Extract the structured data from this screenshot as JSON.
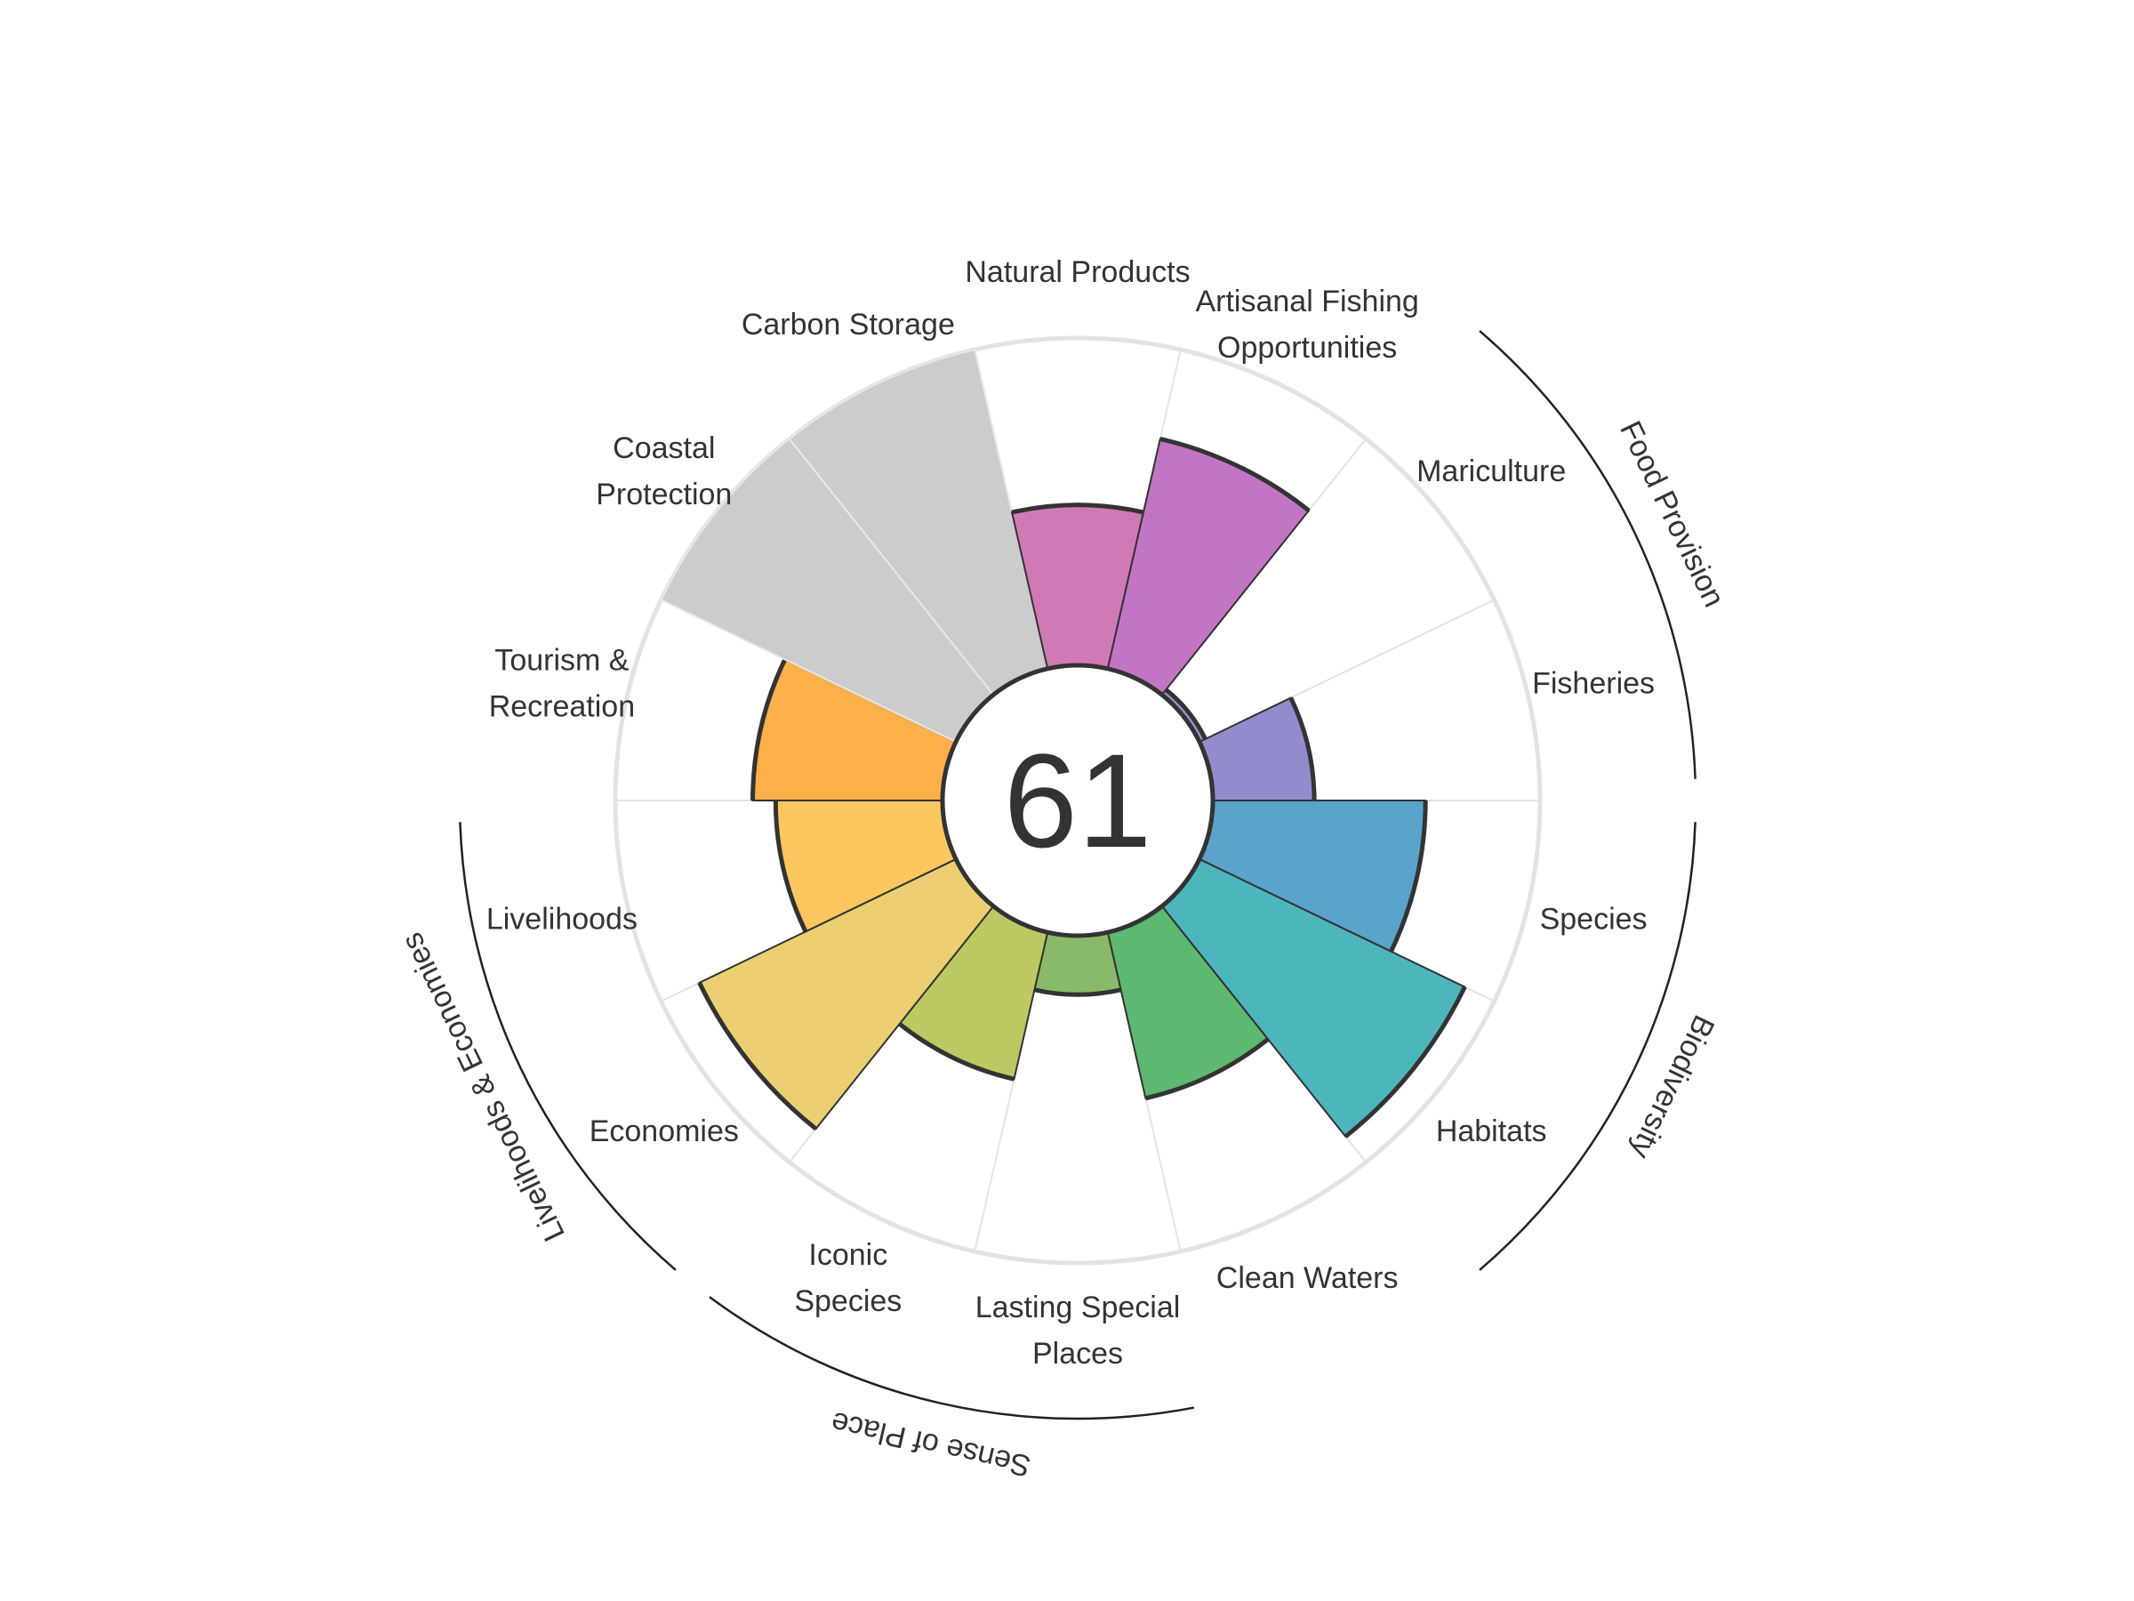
{
  "chart_data": {
    "type": "polar-bar",
    "title": "",
    "center_score": "61",
    "max_value": 100,
    "background_color": "#ffffff",
    "grid_color": "#e3e3e3",
    "segments": [
      {
        "label_lines": [
          "Species"
        ],
        "value": 65,
        "color": "#5aa3cb",
        "na": false
      },
      {
        "label_lines": [
          "Habitats"
        ],
        "value": 90,
        "color": "#4db6bd",
        "na": false
      },
      {
        "label_lines": [
          "Clean Waters"
        ],
        "value": 52,
        "color": "#5db870",
        "na": false
      },
      {
        "label_lines": [
          "Lasting Special",
          "Places"
        ],
        "value": 18,
        "color": "#8ab96a",
        "na": false
      },
      {
        "label_lines": [
          "Iconic",
          "Species"
        ],
        "value": 46,
        "color": "#bec862",
        "na": false
      },
      {
        "label_lines": [
          "Economies"
        ],
        "value": 87,
        "color": "#ebcf72",
        "na": false
      },
      {
        "label_lines": [
          "Livelihoods"
        ],
        "value": 51,
        "color": "#fdc760",
        "na": false
      },
      {
        "label_lines": [
          "Tourism &",
          "Recreation"
        ],
        "value": 58,
        "color": "#fdaf4a",
        "na": false
      },
      {
        "label_lines": [
          "Coastal",
          "Protection"
        ],
        "value": 100,
        "color": "#cccccc",
        "na": true
      },
      {
        "label_lines": [
          "Carbon Storage"
        ],
        "value": 100,
        "color": "#cccccc",
        "na": true
      },
      {
        "label_lines": [
          "Natural Products"
        ],
        "value": 49,
        "color": "#d179b5",
        "na": false
      },
      {
        "label_lines": [
          "Artisanal Fishing",
          "Opportunities"
        ],
        "value": 72,
        "color": "#c275c4",
        "na": false
      },
      {
        "label_lines": [
          "Mariculture"
        ],
        "value": 2,
        "color": "#a48dd0",
        "na": false
      },
      {
        "label_lines": [
          "Fisheries"
        ],
        "value": 31,
        "color": "#928ccc",
        "na": false
      }
    ],
    "groups": [
      {
        "name": "Food Provision",
        "segments": [
          "Mariculture",
          "Fisheries"
        ]
      },
      {
        "name": "Biodiversity",
        "segments": [
          "Species",
          "Habitats"
        ]
      },
      {
        "name": "Sense of Place",
        "segments": [
          "Lasting Special Places",
          "Iconic Species"
        ]
      },
      {
        "name": "Livelihoods & Economies",
        "segments": [
          "Economies",
          "Livelihoods"
        ]
      }
    ]
  }
}
